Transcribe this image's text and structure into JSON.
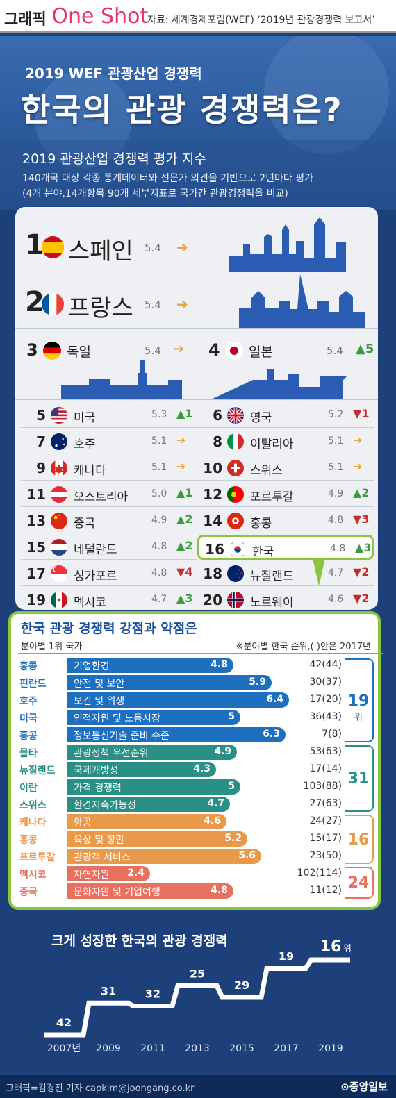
{
  "header": {
    "brand_a": "그래픽",
    "brand_b": "One Shot",
    "source": "자료: 세계경제포럼(WEF) ‘2019년 관광경쟁력 보고서’"
  },
  "hero": {
    "subtitle": "2019 WEF 관광산업 경쟁력",
    "title": "한국의 관광 경쟁력은?",
    "section": "2019 관광산업 경쟁력 평가 지수",
    "desc1": "140개국 대상 각종 통계데이터와 전문가 의견을 기반으로 2년마다 평가",
    "desc2": "(4개 분야,14개항목 90개 세부지표로 국가간 관광경쟁력을 비교)"
  },
  "ranking": [
    {
      "rank": "1",
      "name": "스페인",
      "score": "5.4",
      "trend": "",
      "dir": "eq",
      "flag": "es"
    },
    {
      "rank": "2",
      "name": "프랑스",
      "score": "5.4",
      "trend": "",
      "dir": "eq",
      "flag": "fr"
    },
    {
      "rank": "3",
      "name": "독일",
      "score": "5.4",
      "trend": "",
      "dir": "eq",
      "flag": "de"
    },
    {
      "rank": "4",
      "name": "일본",
      "score": "5.4",
      "trend": "5",
      "dir": "up",
      "flag": "jp"
    },
    {
      "rank": "5",
      "name": "미국",
      "score": "5.3",
      "trend": "1",
      "dir": "up",
      "flag": "us"
    },
    {
      "rank": "6",
      "name": "영국",
      "score": "5.2",
      "trend": "1",
      "dir": "dn",
      "flag": "gb"
    },
    {
      "rank": "7",
      "name": "호주",
      "score": "5.1",
      "trend": "",
      "dir": "eq",
      "flag": "au"
    },
    {
      "rank": "8",
      "name": "이탈리아",
      "score": "5.1",
      "trend": "",
      "dir": "eq",
      "flag": "it"
    },
    {
      "rank": "9",
      "name": "캐나다",
      "score": "5.1",
      "trend": "",
      "dir": "eq",
      "flag": "ca"
    },
    {
      "rank": "10",
      "name": "스위스",
      "score": "5.1",
      "trend": "",
      "dir": "eq",
      "flag": "ch"
    },
    {
      "rank": "11",
      "name": "오스트리아",
      "score": "5.0",
      "trend": "1",
      "dir": "up",
      "flag": "at"
    },
    {
      "rank": "12",
      "name": "포르투갈",
      "score": "4.9",
      "trend": "2",
      "dir": "up",
      "flag": "pt"
    },
    {
      "rank": "13",
      "name": "중국",
      "score": "4.9",
      "trend": "2",
      "dir": "up",
      "flag": "cn"
    },
    {
      "rank": "14",
      "name": "홍콩",
      "score": "4.8",
      "trend": "3",
      "dir": "dn",
      "flag": "hk"
    },
    {
      "rank": "15",
      "name": "네덜란드",
      "score": "4.8",
      "trend": "2",
      "dir": "up",
      "flag": "nl"
    },
    {
      "rank": "16",
      "name": "한국",
      "score": "4.8",
      "trend": "3",
      "dir": "up",
      "flag": "kr"
    },
    {
      "rank": "17",
      "name": "싱가포르",
      "score": "4.8",
      "trend": "4",
      "dir": "dn",
      "flag": "sg"
    },
    {
      "rank": "18",
      "name": "뉴질랜드",
      "score": "4.7",
      "trend": "2",
      "dir": "dn",
      "flag": "nz"
    },
    {
      "rank": "19",
      "name": "멕시코",
      "score": "4.7",
      "trend": "3",
      "dir": "up",
      "flag": "mx"
    },
    {
      "rank": "20",
      "name": "노르웨이",
      "score": "4.6",
      "trend": "2",
      "dir": "dn",
      "flag": "no"
    }
  ],
  "points": {
    "title": "한국 관광 경쟁력 강점과 약점은",
    "left_note": "분야별 1위 국가",
    "right_note": "※분야별 한국 순위,( )안은 2017년",
    "groups": [
      {
        "label": "19",
        "unit": "위",
        "color": "#1f6fbf"
      },
      {
        "label": "31",
        "unit": "",
        "color": "#2a8f86"
      },
      {
        "label": "16",
        "unit": "",
        "color": "#e89a4a"
      },
      {
        "label": "24",
        "unit": "",
        "color": "#e8705f"
      }
    ],
    "items": [
      {
        "country": "홍콩",
        "name": "기업환경",
        "value": 4.8,
        "rank": "42(44)",
        "group": 0
      },
      {
        "country": "핀란드",
        "name": "안전 및 보안",
        "value": 5.9,
        "rank": "30(37)",
        "group": 0
      },
      {
        "country": "호주",
        "name": "보건 및 위생",
        "value": 6.4,
        "rank": "17(20)",
        "group": 0
      },
      {
        "country": "미국",
        "name": "인적자원 및 노동시장",
        "value": 5.0,
        "rank": "36(43)",
        "group": 0
      },
      {
        "country": "홍콩",
        "name": "정보통신기술 준비 수준",
        "value": 6.3,
        "rank": "7(8)",
        "group": 0
      },
      {
        "country": "몰타",
        "name": "관광정책 우선순위",
        "value": 4.9,
        "rank": "53(63)",
        "group": 1
      },
      {
        "country": "뉴질랜드",
        "name": "국제개방성",
        "value": 4.3,
        "rank": "17(14)",
        "group": 1
      },
      {
        "country": "이란",
        "name": "가격 경쟁력",
        "value": 5.0,
        "rank": "103(88)",
        "group": 1
      },
      {
        "country": "스위스",
        "name": "환경지속가능성",
        "value": 4.7,
        "rank": "27(63)",
        "group": 1
      },
      {
        "country": "캐나다",
        "name": "항공",
        "value": 4.6,
        "rank": "24(27)",
        "group": 2
      },
      {
        "country": "홍콩",
        "name": "육상 및 항만",
        "value": 5.2,
        "rank": "15(17)",
        "group": 2
      },
      {
        "country": "포르투갈",
        "name": "관광객 서비스",
        "value": 5.6,
        "rank": "23(50)",
        "group": 2
      },
      {
        "country": "멕시코",
        "name": "자연자원",
        "value": 2.4,
        "rank": "102(114)",
        "group": 3
      },
      {
        "country": "중국",
        "name": "문화자원 및 기업여행",
        "value": 4.8,
        "rank": "11(12)",
        "group": 3
      }
    ]
  },
  "chart_data": {
    "type": "line",
    "title": "크게 성장한 한국의 관광 경쟁력",
    "x": [
      "2007년",
      "2009",
      "2011",
      "2013",
      "2015",
      "2017",
      "2019"
    ],
    "values": [
      42,
      31,
      32,
      25,
      29,
      19,
      16
    ],
    "last_suffix": "위"
  },
  "footer": {
    "credit": "그래픽=김경진 기자 capkim@joongang.co.kr",
    "logo": "중앙일보"
  }
}
